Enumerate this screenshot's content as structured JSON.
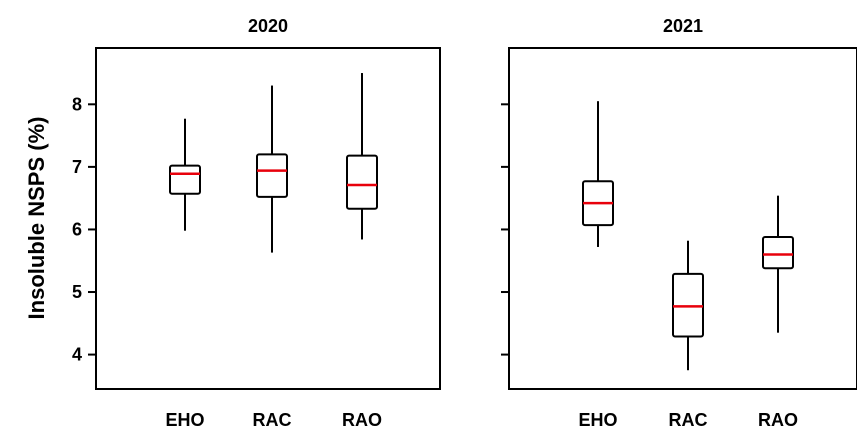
{
  "chart_data": {
    "type": "box",
    "ylabel": "Insoluble NSPS (%)",
    "y_ticks": [
      "4",
      "5",
      "6",
      "7",
      "8"
    ],
    "colors": {
      "box_stroke": "#000000",
      "median": "#e8000b"
    },
    "panels": [
      {
        "title": "2020",
        "ylim": [
          3.45,
          8.9
        ],
        "categories": [
          "EHO",
          "RAC",
          "RAO"
        ],
        "boxes": [
          {
            "category": "EHO",
            "whisker_low": 5.98,
            "q1": 6.57,
            "median": 6.89,
            "q3": 7.02,
            "whisker_high": 7.77
          },
          {
            "category": "RAC",
            "whisker_low": 5.63,
            "q1": 6.52,
            "median": 6.94,
            "q3": 7.2,
            "whisker_high": 8.3
          },
          {
            "category": "RAO",
            "whisker_low": 5.84,
            "q1": 6.33,
            "median": 6.71,
            "q3": 7.18,
            "whisker_high": 8.5
          }
        ]
      },
      {
        "title": "2021",
        "ylim": [
          3.45,
          8.9
        ],
        "categories": [
          "EHO",
          "RAC",
          "RAO"
        ],
        "boxes": [
          {
            "category": "EHO",
            "whisker_low": 5.72,
            "q1": 6.07,
            "median": 6.42,
            "q3": 6.77,
            "whisker_high": 8.05
          },
          {
            "category": "RAC",
            "whisker_low": 3.75,
            "q1": 4.29,
            "median": 4.77,
            "q3": 5.29,
            "whisker_high": 5.82
          },
          {
            "category": "RAO",
            "whisker_low": 4.35,
            "q1": 5.38,
            "median": 5.6,
            "q3": 5.88,
            "whisker_high": 6.54
          }
        ]
      }
    ]
  }
}
